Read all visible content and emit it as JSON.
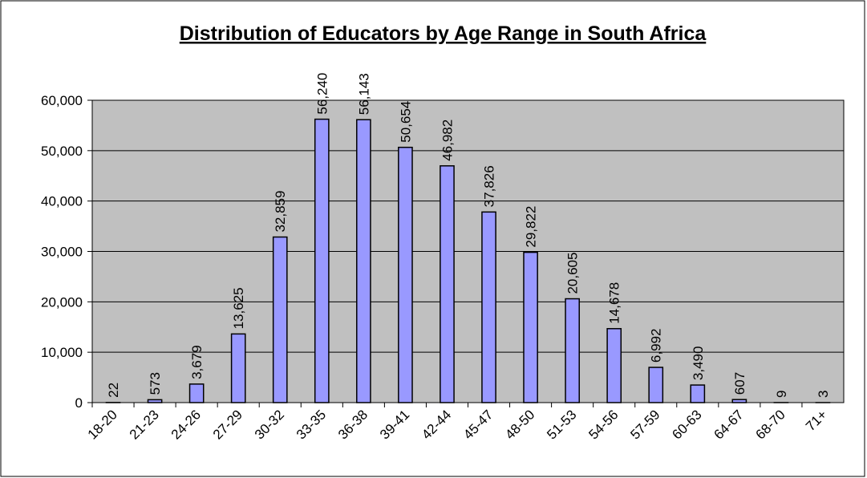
{
  "chart_data": {
    "type": "bar",
    "title": "Distribution of Educators by Age Range in South Africa",
    "categories": [
      "18-20",
      "21-23",
      "24-26",
      "27-29",
      "30-32",
      "33-35",
      "36-38",
      "39-41",
      "42-44",
      "45-47",
      "48-50",
      "51-53",
      "54-56",
      "57-59",
      "60-63",
      "64-67",
      "68-70",
      "71+"
    ],
    "values": [
      22,
      573,
      3679,
      13625,
      32859,
      56240,
      56143,
      50654,
      46982,
      37826,
      29822,
      20605,
      14678,
      6992,
      3490,
      607,
      9,
      3
    ],
    "value_labels": [
      "22",
      "573",
      "3,679",
      "13,625",
      "32,859",
      "56,240",
      "56,143",
      "50,654",
      "46,982",
      "37,826",
      "29,822",
      "20,605",
      "14,678",
      "6,992",
      "3,490",
      "607",
      "9",
      "3"
    ],
    "color": "#9999ff",
    "ylim": [
      0,
      60000
    ],
    "yticks": [
      0,
      {
        "value": 10000,
        "label": "10,000"
      },
      {
        "value": 20000,
        "label": "20,000"
      },
      {
        "value": 30000,
        "label": "30,000"
      },
      {
        "value": 40000,
        "label": "40,000"
      },
      {
        "value": 50000,
        "label": "50,000"
      },
      {
        "value": 60000,
        "label": "60,000"
      }
    ],
    "grid": true
  }
}
